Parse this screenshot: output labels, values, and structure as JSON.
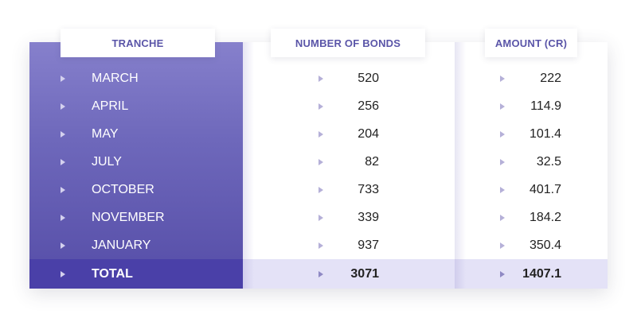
{
  "headers": {
    "tranche": "TRANCHE",
    "bonds": "NUMBER OF BONDS",
    "amount": "AMOUNT (CR)"
  },
  "rows": [
    {
      "tranche": "MARCH",
      "bonds": "520",
      "amount": "222"
    },
    {
      "tranche": "APRIL",
      "bonds": "256",
      "amount": "114.9"
    },
    {
      "tranche": "MAY",
      "bonds": "204",
      "amount": "101.4"
    },
    {
      "tranche": "JULY",
      "bonds": "82",
      "amount": "32.5"
    },
    {
      "tranche": "OCTOBER",
      "bonds": "733",
      "amount": "401.7"
    },
    {
      "tranche": "NOVEMBER",
      "bonds": "339",
      "amount": "184.2"
    },
    {
      "tranche": "JANUARY",
      "bonds": "937",
      "amount": "350.4"
    }
  ],
  "total": {
    "tranche": "TOTAL",
    "bonds": "3071",
    "amount": "1407.1"
  },
  "colors": {
    "panel": "#6e68bb",
    "total_panel": "#4a40a8",
    "total_strip": "#e4e2f7",
    "header_text": "#5a55a8",
    "arrow": "#b5b0d8"
  },
  "icons": {
    "bullet": "triangle-right-icon"
  }
}
